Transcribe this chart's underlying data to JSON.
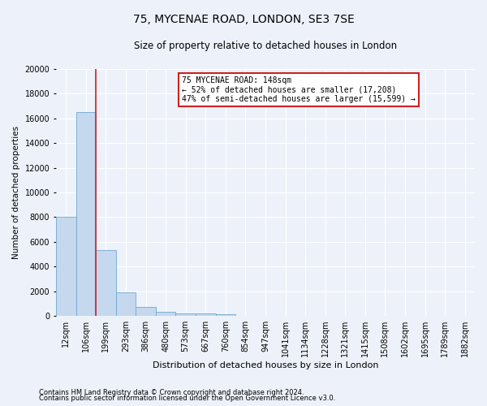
{
  "title": "75, MYCENAE ROAD, LONDON, SE3 7SE",
  "subtitle": "Size of property relative to detached houses in London",
  "xlabel": "Distribution of detached houses by size in London",
  "ylabel": "Number of detached properties",
  "bar_color": "#c5d8ee",
  "bar_edge_color": "#6ea8d0",
  "marker_color": "#cc2222",
  "categories": [
    "12sqm",
    "106sqm",
    "199sqm",
    "293sqm",
    "386sqm",
    "480sqm",
    "573sqm",
    "667sqm",
    "760sqm",
    "854sqm",
    "947sqm",
    "1041sqm",
    "1134sqm",
    "1228sqm",
    "1321sqm",
    "1415sqm",
    "1508sqm",
    "1602sqm",
    "1695sqm",
    "1789sqm",
    "1882sqm"
  ],
  "values": [
    8050,
    16500,
    5350,
    1900,
    700,
    350,
    200,
    170,
    140,
    0,
    0,
    0,
    0,
    0,
    0,
    0,
    0,
    0,
    0,
    0,
    0
  ],
  "ylim": [
    0,
    20000
  ],
  "yticks": [
    0,
    2000,
    4000,
    6000,
    8000,
    10000,
    12000,
    14000,
    16000,
    18000,
    20000
  ],
  "annotation_title": "75 MYCENAE ROAD: 148sqm",
  "annotation_line1": "← 52% of detached houses are smaller (17,208)",
  "annotation_line2": "47% of semi-detached houses are larger (15,599) →",
  "footer_line1": "Contains HM Land Registry data © Crown copyright and database right 2024.",
  "footer_line2": "Contains public sector information licensed under the Open Government Licence v3.0.",
  "bg_color": "#edf2fa",
  "grid_color": "#ffffff",
  "annotation_box_color": "#ffffff",
  "annotation_border_color": "#cc2222",
  "title_fontsize": 10,
  "subtitle_fontsize": 8.5,
  "ylabel_fontsize": 7.5,
  "xlabel_fontsize": 8,
  "tick_fontsize": 7,
  "annot_fontsize": 7,
  "footer_fontsize": 6
}
